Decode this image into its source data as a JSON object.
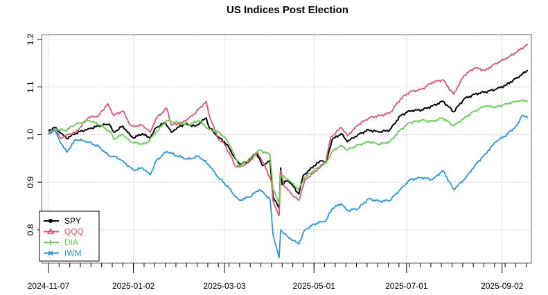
{
  "chart_data": {
    "type": "line",
    "title": "US Indices Post Election",
    "xlabel": "",
    "ylabel": "",
    "x_start": "2024-11-07",
    "x_end": "2025-09-19",
    "x_ticks": [
      "2024-11-07",
      "2025-01-02",
      "2025-03-03",
      "2025-05-01",
      "2025-07-01",
      "2025-09-02"
    ],
    "ylim": [
      0.73,
      1.21
    ],
    "y_ticks": [
      "0.8",
      "0.9",
      "1.0",
      "1.1",
      "1.2"
    ],
    "grid": true,
    "legend_position": "bottom-left",
    "series": [
      {
        "name": "SPY",
        "color": "#000000",
        "points": [
          [
            "2024-11-07",
            1.008
          ],
          [
            "2024-11-11",
            1.015
          ],
          [
            "2024-11-15",
            1.003
          ],
          [
            "2024-11-19",
            0.992
          ],
          [
            "2024-11-25",
            1.003
          ],
          [
            "2024-12-03",
            1.012
          ],
          [
            "2024-12-10",
            1.018
          ],
          [
            "2024-12-17",
            1.022
          ],
          [
            "2024-12-20",
            1.005
          ],
          [
            "2024-12-26",
            1.018
          ],
          [
            "2024-12-31",
            0.998
          ],
          [
            "2025-01-02",
            0.993
          ],
          [
            "2025-01-08",
            1.002
          ],
          [
            "2025-01-13",
            0.992
          ],
          [
            "2025-01-17",
            1.015
          ],
          [
            "2025-01-23",
            1.025
          ],
          [
            "2025-01-27",
            1.005
          ],
          [
            "2025-01-31",
            1.015
          ],
          [
            "2025-02-05",
            1.022
          ],
          [
            "2025-02-12",
            1.018
          ],
          [
            "2025-02-19",
            1.035
          ],
          [
            "2025-02-21",
            1.015
          ],
          [
            "2025-02-27",
            0.995
          ],
          [
            "2025-03-03",
            0.985
          ],
          [
            "2025-03-06",
            0.972
          ],
          [
            "2025-03-10",
            0.95
          ],
          [
            "2025-03-13",
            0.938
          ],
          [
            "2025-03-18",
            0.942
          ],
          [
            "2025-03-24",
            0.962
          ],
          [
            "2025-03-28",
            0.935
          ],
          [
            "2025-04-02",
            0.945
          ],
          [
            "2025-04-04",
            0.87
          ],
          [
            "2025-04-08",
            0.845
          ],
          [
            "2025-04-09",
            0.93
          ],
          [
            "2025-04-10",
            0.895
          ],
          [
            "2025-04-14",
            0.905
          ],
          [
            "2025-04-21",
            0.875
          ],
          [
            "2025-04-24",
            0.915
          ],
          [
            "2025-04-28",
            0.925
          ],
          [
            "2025-05-01",
            0.935
          ],
          [
            "2025-05-06",
            0.945
          ],
          [
            "2025-05-09",
            0.942
          ],
          [
            "2025-05-13",
            0.99
          ],
          [
            "2025-05-19",
            1.002
          ],
          [
            "2025-05-23",
            0.985
          ],
          [
            "2025-05-30",
            1.0
          ],
          [
            "2025-06-06",
            1.01
          ],
          [
            "2025-06-13",
            1.005
          ],
          [
            "2025-06-20",
            1.01
          ],
          [
            "2025-06-27",
            1.04
          ],
          [
            "2025-07-03",
            1.05
          ],
          [
            "2025-07-11",
            1.052
          ],
          [
            "2025-07-18",
            1.06
          ],
          [
            "2025-07-25",
            1.07
          ],
          [
            "2025-08-01",
            1.048
          ],
          [
            "2025-08-08",
            1.075
          ],
          [
            "2025-08-15",
            1.085
          ],
          [
            "2025-08-22",
            1.09
          ],
          [
            "2025-08-29",
            1.095
          ],
          [
            "2025-09-05",
            1.105
          ],
          [
            "2025-09-12",
            1.12
          ],
          [
            "2025-09-19",
            1.135
          ]
        ]
      },
      {
        "name": "QQQ",
        "color": "#DF536B",
        "points": [
          [
            "2024-11-07",
            1.005
          ],
          [
            "2024-11-11",
            1.01
          ],
          [
            "2024-11-15",
            0.993
          ],
          [
            "2024-11-19",
            1.0
          ],
          [
            "2024-11-25",
            1.005
          ],
          [
            "2024-12-03",
            1.035
          ],
          [
            "2024-12-10",
            1.04
          ],
          [
            "2024-12-16",
            1.065
          ],
          [
            "2024-12-20",
            1.04
          ],
          [
            "2024-12-26",
            1.05
          ],
          [
            "2024-12-31",
            1.02
          ],
          [
            "2025-01-02",
            1.018
          ],
          [
            "2025-01-08",
            1.02
          ],
          [
            "2025-01-13",
            1.005
          ],
          [
            "2025-01-17",
            1.035
          ],
          [
            "2025-01-24",
            1.055
          ],
          [
            "2025-01-27",
            1.02
          ],
          [
            "2025-02-03",
            1.025
          ],
          [
            "2025-02-10",
            1.04
          ],
          [
            "2025-02-19",
            1.07
          ],
          [
            "2025-02-21",
            1.04
          ],
          [
            "2025-02-27",
            0.99
          ],
          [
            "2025-03-03",
            0.98
          ],
          [
            "2025-03-07",
            0.955
          ],
          [
            "2025-03-10",
            0.935
          ],
          [
            "2025-03-13",
            0.932
          ],
          [
            "2025-03-18",
            0.94
          ],
          [
            "2025-03-25",
            0.962
          ],
          [
            "2025-03-31",
            0.925
          ],
          [
            "2025-04-03",
            0.9
          ],
          [
            "2025-04-04",
            0.86
          ],
          [
            "2025-04-08",
            0.83
          ],
          [
            "2025-04-09",
            0.925
          ],
          [
            "2025-04-11",
            0.895
          ],
          [
            "2025-04-16",
            0.875
          ],
          [
            "2025-04-21",
            0.862
          ],
          [
            "2025-04-25",
            0.905
          ],
          [
            "2025-05-01",
            0.92
          ],
          [
            "2025-05-09",
            0.945
          ],
          [
            "2025-05-12",
            0.995
          ],
          [
            "2025-05-19",
            1.015
          ],
          [
            "2025-05-23",
            0.998
          ],
          [
            "2025-05-30",
            1.02
          ],
          [
            "2025-06-06",
            1.035
          ],
          [
            "2025-06-13",
            1.04
          ],
          [
            "2025-06-20",
            1.045
          ],
          [
            "2025-06-27",
            1.075
          ],
          [
            "2025-07-03",
            1.09
          ],
          [
            "2025-07-11",
            1.095
          ],
          [
            "2025-07-18",
            1.11
          ],
          [
            "2025-07-25",
            1.115
          ],
          [
            "2025-08-01",
            1.085
          ],
          [
            "2025-08-08",
            1.125
          ],
          [
            "2025-08-15",
            1.14
          ],
          [
            "2025-08-22",
            1.135
          ],
          [
            "2025-08-29",
            1.15
          ],
          [
            "2025-09-05",
            1.16
          ],
          [
            "2025-09-12",
            1.175
          ],
          [
            "2025-09-19",
            1.19
          ]
        ]
      },
      {
        "name": "DIA",
        "color": "#61D04F",
        "points": [
          [
            "2024-11-07",
            1.003
          ],
          [
            "2024-11-12",
            1.012
          ],
          [
            "2024-11-18",
            1.008
          ],
          [
            "2024-11-25",
            1.022
          ],
          [
            "2024-12-04",
            1.03
          ],
          [
            "2024-12-11",
            1.02
          ],
          [
            "2024-12-18",
            1.005
          ],
          [
            "2024-12-20",
            0.99
          ],
          [
            "2024-12-26",
            1.0
          ],
          [
            "2024-12-31",
            0.985
          ],
          [
            "2025-01-02",
            0.983
          ],
          [
            "2025-01-10",
            0.98
          ],
          [
            "2025-01-17",
            1.005
          ],
          [
            "2025-01-24",
            1.03
          ],
          [
            "2025-01-31",
            1.025
          ],
          [
            "2025-02-07",
            1.02
          ],
          [
            "2025-02-14",
            1.03
          ],
          [
            "2025-02-21",
            1.01
          ],
          [
            "2025-02-27",
            1.005
          ],
          [
            "2025-03-03",
            0.995
          ],
          [
            "2025-03-07",
            0.975
          ],
          [
            "2025-03-10",
            0.952
          ],
          [
            "2025-03-13",
            0.935
          ],
          [
            "2025-03-20",
            0.95
          ],
          [
            "2025-03-26",
            0.968
          ],
          [
            "2025-04-02",
            0.958
          ],
          [
            "2025-04-04",
            0.885
          ],
          [
            "2025-04-08",
            0.855
          ],
          [
            "2025-04-09",
            0.915
          ],
          [
            "2025-04-14",
            0.905
          ],
          [
            "2025-04-21",
            0.885
          ],
          [
            "2025-04-25",
            0.91
          ],
          [
            "2025-05-01",
            0.925
          ],
          [
            "2025-05-09",
            0.94
          ],
          [
            "2025-05-13",
            0.965
          ],
          [
            "2025-05-19",
            0.978
          ],
          [
            "2025-05-23",
            0.968
          ],
          [
            "2025-05-30",
            0.978
          ],
          [
            "2025-06-06",
            0.985
          ],
          [
            "2025-06-13",
            0.98
          ],
          [
            "2025-06-20",
            0.985
          ],
          [
            "2025-06-27",
            1.01
          ],
          [
            "2025-07-03",
            1.025
          ],
          [
            "2025-07-11",
            1.03
          ],
          [
            "2025-07-18",
            1.028
          ],
          [
            "2025-07-25",
            1.035
          ],
          [
            "2025-08-01",
            1.018
          ],
          [
            "2025-08-08",
            1.035
          ],
          [
            "2025-08-15",
            1.05
          ],
          [
            "2025-08-22",
            1.06
          ],
          [
            "2025-08-29",
            1.058
          ],
          [
            "2025-09-05",
            1.065
          ],
          [
            "2025-09-12",
            1.07
          ],
          [
            "2025-09-19",
            1.072
          ]
        ]
      },
      {
        "name": "IWM",
        "color": "#2297E6",
        "points": [
          [
            "2024-11-07",
            1.0
          ],
          [
            "2024-11-11",
            1.01
          ],
          [
            "2024-11-14",
            0.99
          ],
          [
            "2024-11-19",
            0.963
          ],
          [
            "2024-11-25",
            0.99
          ],
          [
            "2024-12-03",
            0.985
          ],
          [
            "2024-12-10",
            0.975
          ],
          [
            "2024-12-17",
            0.955
          ],
          [
            "2024-12-20",
            0.955
          ],
          [
            "2024-12-26",
            0.945
          ],
          [
            "2024-12-31",
            0.93
          ],
          [
            "2025-01-02",
            0.925
          ],
          [
            "2025-01-08",
            0.93
          ],
          [
            "2025-01-13",
            0.915
          ],
          [
            "2025-01-17",
            0.945
          ],
          [
            "2025-01-24",
            0.965
          ],
          [
            "2025-01-31",
            0.955
          ],
          [
            "2025-02-07",
            0.948
          ],
          [
            "2025-02-14",
            0.955
          ],
          [
            "2025-02-21",
            0.935
          ],
          [
            "2025-02-27",
            0.91
          ],
          [
            "2025-03-03",
            0.898
          ],
          [
            "2025-03-07",
            0.885
          ],
          [
            "2025-03-10",
            0.87
          ],
          [
            "2025-03-13",
            0.862
          ],
          [
            "2025-03-20",
            0.87
          ],
          [
            "2025-03-26",
            0.885
          ],
          [
            "2025-04-02",
            0.865
          ],
          [
            "2025-04-04",
            0.79
          ],
          [
            "2025-04-08",
            0.742
          ],
          [
            "2025-04-09",
            0.8
          ],
          [
            "2025-04-14",
            0.785
          ],
          [
            "2025-04-21",
            0.77
          ],
          [
            "2025-04-25",
            0.8
          ],
          [
            "2025-05-01",
            0.812
          ],
          [
            "2025-05-09",
            0.82
          ],
          [
            "2025-05-13",
            0.845
          ],
          [
            "2025-05-19",
            0.855
          ],
          [
            "2025-05-23",
            0.84
          ],
          [
            "2025-05-30",
            0.845
          ],
          [
            "2025-06-06",
            0.865
          ],
          [
            "2025-06-13",
            0.86
          ],
          [
            "2025-06-20",
            0.862
          ],
          [
            "2025-06-27",
            0.885
          ],
          [
            "2025-07-03",
            0.905
          ],
          [
            "2025-07-11",
            0.91
          ],
          [
            "2025-07-18",
            0.905
          ],
          [
            "2025-07-25",
            0.925
          ],
          [
            "2025-08-01",
            0.885
          ],
          [
            "2025-08-08",
            0.905
          ],
          [
            "2025-08-15",
            0.935
          ],
          [
            "2025-08-22",
            0.96
          ],
          [
            "2025-08-29",
            0.985
          ],
          [
            "2025-09-05",
            1.0
          ],
          [
            "2025-09-12",
            1.02
          ],
          [
            "2025-09-15",
            1.04
          ],
          [
            "2025-09-19",
            1.035
          ]
        ]
      }
    ]
  }
}
